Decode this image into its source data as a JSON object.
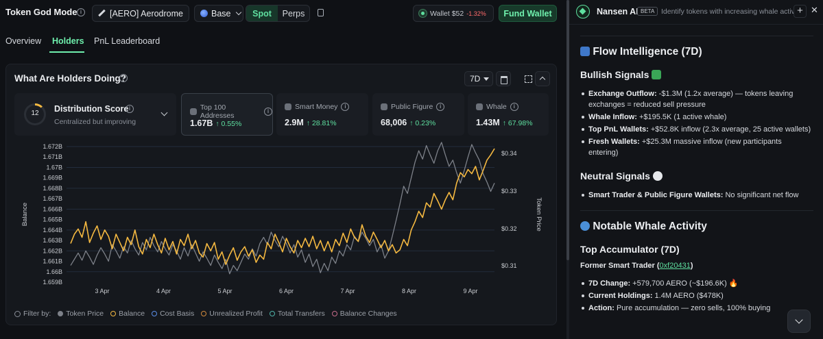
{
  "topbar": {
    "title": "Token God Mode",
    "token_label": "[AERO] Aerodrome",
    "chain": "Base",
    "modes": [
      "Spot",
      "Perps"
    ],
    "wallet_label": "Wallet $52",
    "wallet_change": "-1.32%",
    "fund_button": "Fund Wallet"
  },
  "tabs": [
    "Overview",
    "Holders",
    "PnL Leaderboard"
  ],
  "panel": {
    "title": "What Are Holders Doing?",
    "timeframe": "7D",
    "distribution": {
      "score": "12",
      "title": "Distribution Score",
      "subtitle": "Centralized but improving"
    },
    "stats": [
      {
        "label": "Top 100 Addresses",
        "value": "1.67B",
        "change": "↑ 0.55%"
      },
      {
        "label": "Smart Money",
        "value": "2.9M",
        "change": "↑ 28.81%"
      },
      {
        "label": "Public Figure",
        "value": "68,006",
        "change": "↑ 0.23%"
      },
      {
        "label": "Whale",
        "value": "1.43M",
        "change": "↑ 67.98%"
      }
    ],
    "legend": {
      "filter_label": "Filter by:",
      "items": [
        "Token Price",
        "Balance",
        "Cost Basis",
        "Unrealized Profit",
        "Total Transfers",
        "Balance Changes"
      ]
    }
  },
  "chart_data": {
    "type": "line",
    "ylabel": "Balance",
    "y2label": "Token Price",
    "y_ticks": [
      "1.672B",
      "1.671B",
      "1.67B",
      "1.669B",
      "1.668B",
      "1.667B",
      "1.666B",
      "1.665B",
      "1.664B",
      "1.663B",
      "1.662B",
      "1.661B",
      "1.66B",
      "1.659B"
    ],
    "ylim": [
      1.659,
      1.672
    ],
    "y2_ticks": [
      "$0.34",
      "$0.33",
      "$0.32",
      "$0.31"
    ],
    "y2lim": [
      1.659,
      1.672
    ],
    "x_ticks": [
      "3 Apr",
      "4 Apr",
      "5 Apr",
      "6 Apr",
      "7 Apr",
      "8 Apr",
      "9 Apr"
    ],
    "series": [
      {
        "name": "Balance",
        "color": "#f5b941",
        "values": [
          1.6627,
          1.6636,
          1.6641,
          1.6633,
          1.6648,
          1.6628,
          1.6637,
          1.6644,
          1.6631,
          1.664,
          1.6634,
          1.6622,
          1.6636,
          1.6628,
          1.662,
          1.6633,
          1.6626,
          1.664,
          1.6624,
          1.6617,
          1.6631,
          1.6623,
          1.6636,
          1.6626,
          1.6618,
          1.6632,
          1.6621,
          1.6629,
          1.6617,
          1.6631,
          1.6625,
          1.6636,
          1.6622,
          1.663,
          1.6618,
          1.6614,
          1.6627,
          1.662,
          1.6628,
          1.6612,
          1.6619,
          1.6607,
          1.6616,
          1.6623,
          1.6611,
          1.6619,
          1.6624,
          1.6615,
          1.6621,
          1.6609,
          1.6616,
          1.6612,
          1.6628,
          1.6622,
          1.6636,
          1.6628,
          1.6619,
          1.6632,
          1.6624,
          1.6618,
          1.663,
          1.6623,
          1.6632,
          1.6624,
          1.6634,
          1.6622,
          1.663,
          1.662,
          1.6629,
          1.6619,
          1.6631,
          1.6625,
          1.6637,
          1.6628,
          1.6641,
          1.6633,
          1.6629,
          1.6645,
          1.6634,
          1.6628,
          1.6638,
          1.6631,
          1.6623,
          1.663,
          1.662,
          1.6626,
          1.6618,
          1.6621,
          1.6631,
          1.6625,
          1.664,
          1.6648,
          1.6658,
          1.6652,
          1.6666,
          1.6662,
          1.6675,
          1.6668,
          1.666,
          1.6669,
          1.6676,
          1.6669,
          1.6685,
          1.6695,
          1.6691,
          1.6698,
          1.6694,
          1.6701,
          1.6688,
          1.6697,
          1.6707,
          1.6712,
          1.6718
        ]
      },
      {
        "name": "Token Price",
        "color": "#7d8189",
        "values": [
          1.6606,
          1.6612,
          1.6618,
          1.6611,
          1.662,
          1.6614,
          1.6607,
          1.6616,
          1.6623,
          1.6617,
          1.661,
          1.6626,
          1.662,
          1.6613,
          1.6624,
          1.6618,
          1.663,
          1.6622,
          1.6616,
          1.6628,
          1.6621,
          1.6633,
          1.6625,
          1.6619,
          1.6629,
          1.6622,
          1.6616,
          1.6626,
          1.662,
          1.6612,
          1.6623,
          1.6615,
          1.6626,
          1.6618,
          1.661,
          1.6619,
          1.6613,
          1.6606,
          1.6616,
          1.6609,
          1.6603,
          1.6612,
          1.6598,
          1.6606,
          1.6601,
          1.6609,
          1.6617,
          1.6612,
          1.6622,
          1.6615,
          1.6627,
          1.6633,
          1.6626,
          1.6638,
          1.663,
          1.6624,
          1.6634,
          1.6627,
          1.6618,
          1.6626,
          1.6614,
          1.6621,
          1.6609,
          1.6617,
          1.6605,
          1.6612,
          1.6599,
          1.6608,
          1.6601,
          1.6614,
          1.6608,
          1.662,
          1.6615,
          1.6626,
          1.6621,
          1.6634,
          1.6629,
          1.6638,
          1.6632,
          1.6625,
          1.6631,
          1.6619,
          1.6626,
          1.6613,
          1.662,
          1.6634,
          1.6649,
          1.6665,
          1.6682,
          1.6675,
          1.669,
          1.6705,
          1.6716,
          1.6708,
          1.6721,
          1.6712,
          1.6704,
          1.6716,
          1.6724,
          1.6712,
          1.6701,
          1.6707,
          1.6695,
          1.6685,
          1.6697,
          1.671,
          1.6722,
          1.6714,
          1.6707,
          1.6694,
          1.6686,
          1.6677,
          1.6685
        ]
      }
    ]
  },
  "assistant": {
    "name": "Nansen AI",
    "badge": "BETA",
    "description": "Identify tokens with increasing whale activity",
    "sections": {
      "flow_title": "Flow Intelligence (7D)",
      "bullish_title": "Bullish Signals",
      "bullish": [
        {
          "k": "Exchange Outflow:",
          "v": " -$1.3M (1.2x average) — tokens leaving exchanges = reduced sell pressure"
        },
        {
          "k": "Whale Inflow:",
          "v": " +$195.5K (1 active whale)"
        },
        {
          "k": "Top PnL Wallets:",
          "v": " +$52.8K inflow (2.3x average, 25 active wallets)"
        },
        {
          "k": "Fresh Wallets:",
          "v": " +$25.3M massive inflow (new participants entering)"
        }
      ],
      "neutral_title": "Neutral Signals",
      "neutral": [
        {
          "k": "Smart Trader & Public Figure Wallets:",
          "v": " No significant net flow"
        }
      ],
      "whale_title": "Notable Whale Activity",
      "accum_title": "Top Accumulator (7D)",
      "former_label": "Former Smart Trader (",
      "former_addr": "0xf20431",
      "former_end": ")",
      "whale_items": [
        {
          "k": "7D Change:",
          "v": " +579,700 AERO (~$196.6K) 🔥"
        },
        {
          "k": "Current Holdings:",
          "v": " 1.4M AERO ($478K)"
        },
        {
          "k": "Action:",
          "v": " Pure accumulation — zero sells, 100% buying"
        }
      ]
    }
  }
}
